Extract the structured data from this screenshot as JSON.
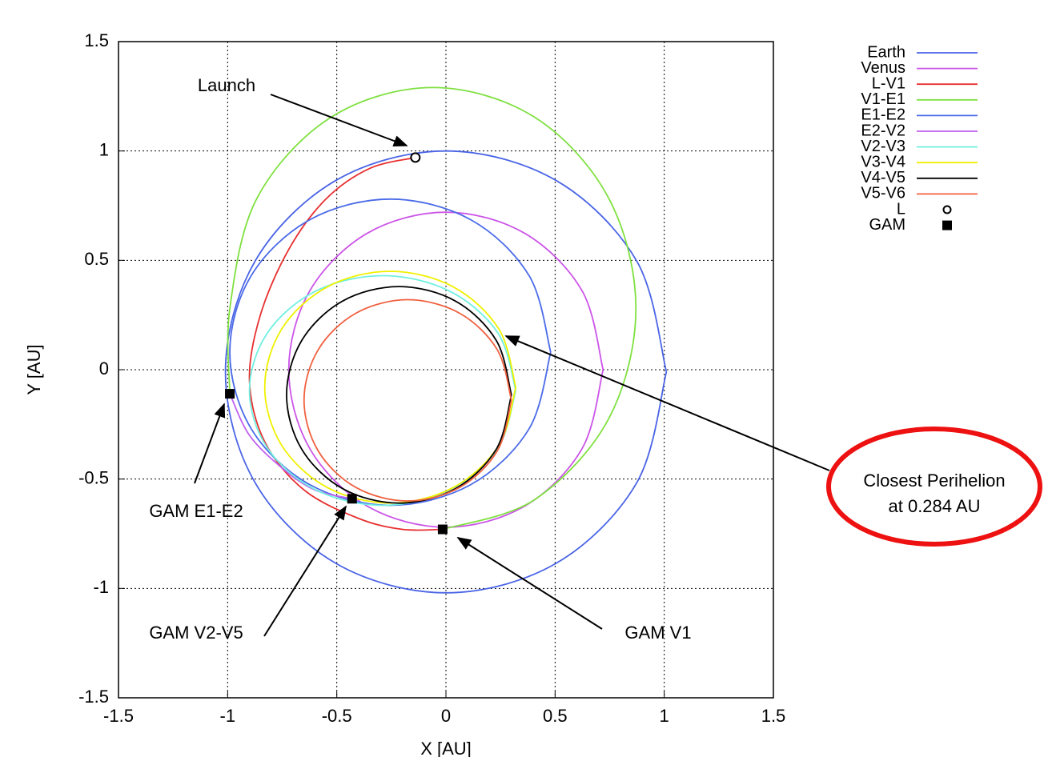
{
  "chart_data": {
    "type": "line",
    "xlabel": "X [AU]",
    "ylabel": "Y [AU]",
    "xlim": [
      -1.5,
      1.5
    ],
    "ylim": [
      -1.5,
      1.5
    ],
    "xticks": [
      -1.5,
      -1,
      -0.5,
      0,
      0.5,
      1,
      1.5
    ],
    "yticks": [
      -1.5,
      -1,
      -0.5,
      0,
      0.5,
      1,
      1.5
    ],
    "grid": true,
    "legend": "outside-right",
    "series": [
      {
        "name": "Earth",
        "color": "#4a64e6",
        "x": [
          1.01,
          0.875,
          0.505,
          0,
          -0.505,
          -0.875,
          -1.01,
          -0.875,
          -0.505,
          0,
          0.505,
          0.875,
          1.01
        ],
        "y": [
          -0.01,
          0.495,
          0.865,
          1.0,
          0.865,
          0.495,
          -0.01,
          -0.515,
          -0.885,
          -1.02,
          -0.885,
          -0.515,
          -0.01
        ]
      },
      {
        "name": "Venus",
        "color": "#cc55e8",
        "x": [
          0.72,
          0.624,
          0.36,
          0,
          -0.36,
          -0.624,
          -0.72,
          -0.624,
          -0.36,
          0,
          0.36,
          0.624,
          0.72
        ],
        "y": [
          0,
          0.36,
          0.624,
          0.72,
          0.624,
          0.36,
          0,
          -0.36,
          -0.624,
          -0.72,
          -0.624,
          -0.36,
          0
        ]
      },
      {
        "name": "L-V1",
        "color": "#e83030",
        "x": [
          -0.14,
          -0.35,
          -0.55,
          -0.72,
          -0.85,
          -0.9,
          -0.83,
          -0.65,
          -0.4,
          -0.2,
          -0.015
        ],
        "y": [
          0.97,
          0.92,
          0.78,
          0.55,
          0.25,
          -0.05,
          -0.33,
          -0.55,
          -0.68,
          -0.73,
          -0.73
        ]
      },
      {
        "name": "V1-E1",
        "color": "#7fe040",
        "x": [
          -0.015,
          0.405,
          0.745,
          0.87,
          0.745,
          0.405,
          -0.06,
          -0.525,
          -0.865,
          -0.99,
          -0.99
        ],
        "y": [
          -0.73,
          -0.595,
          -0.225,
          0.28,
          0.785,
          1.155,
          1.29,
          1.155,
          0.785,
          0.28,
          -0.11
        ]
      },
      {
        "name": "E1-E2",
        "color": "#4a6ae8",
        "x": [
          0.48,
          0.381,
          0.113,
          -0.255,
          -0.623,
          -0.892,
          -0.99,
          -0.892,
          -0.623,
          -0.255,
          0.113,
          0.381,
          0.48
        ],
        "y": [
          0.08,
          0.43,
          0.686,
          0.78,
          0.686,
          0.43,
          0.08,
          -0.27,
          -0.526,
          -0.62,
          -0.526,
          -0.27,
          0.08
        ]
      },
      {
        "name": "E2-V2",
        "color": "#c060f0",
        "x": [
          -0.99,
          -0.9,
          -0.75,
          -0.6,
          -0.43
        ],
        "y": [
          -0.11,
          -0.3,
          -0.45,
          -0.55,
          -0.59
        ]
      },
      {
        "name": "V2-V3",
        "color": "#70f0e0",
        "x": [
          0.32,
          0.238,
          0.015,
          -0.29,
          -0.595,
          -0.818,
          -0.9,
          -0.818,
          -0.595,
          -0.29,
          0.015,
          0.238,
          0.32
        ],
        "y": [
          -0.095,
          0.168,
          0.36,
          0.43,
          0.36,
          0.168,
          -0.095,
          -0.358,
          -0.55,
          -0.62,
          -0.55,
          -0.358,
          -0.095
        ]
      },
      {
        "name": "V3-V4",
        "color": "#f0f000",
        "x": [
          0.32,
          0.243,
          0.033,
          -0.255,
          -0.543,
          -0.753,
          -0.83,
          -0.753,
          -0.543,
          -0.255,
          0.033,
          0.243,
          0.32
        ],
        "y": [
          -0.08,
          0.185,
          0.379,
          0.45,
          0.379,
          0.185,
          -0.08,
          -0.345,
          -0.539,
          -0.61,
          -0.539,
          -0.345,
          -0.08
        ]
      },
      {
        "name": "V4-V5",
        "color": "#000000",
        "x": [
          0.3,
          0.231,
          0.043,
          -0.215,
          -0.473,
          -0.661,
          -0.73,
          -0.661,
          -0.473,
          -0.215,
          0.043,
          0.231,
          0.3
        ],
        "y": [
          -0.115,
          0.133,
          0.314,
          0.38,
          0.314,
          0.133,
          -0.115,
          -0.363,
          -0.544,
          -0.61,
          -0.544,
          -0.363,
          -0.115
        ]
      },
      {
        "name": "V5-V6",
        "color": "#f06040",
        "x": [
          0.3,
          0.236,
          0.063,
          -0.175,
          -0.413,
          -0.586,
          -0.65,
          -0.586,
          -0.413,
          -0.175,
          0.063,
          0.236,
          0.3
        ],
        "y": [
          -0.14,
          0.09,
          0.258,
          0.32,
          0.258,
          0.09,
          -0.14,
          -0.37,
          -0.538,
          -0.6,
          -0.538,
          -0.37,
          -0.14
        ]
      },
      {
        "name": "L",
        "color": "#000000",
        "marker": "circle",
        "x": [
          -0.14
        ],
        "y": [
          0.97
        ]
      },
      {
        "name": "GAM",
        "color": "#000000",
        "marker": "square",
        "x": [
          -0.99,
          -0.43,
          -0.015
        ],
        "y": [
          -0.11,
          -0.59,
          -0.73
        ]
      }
    ],
    "annotations": [
      "Launch",
      "GAM E1-E2",
      "GAM V2-V5",
      "GAM V1",
      "Closest Perihelion",
      "at 0.284 AU"
    ]
  }
}
